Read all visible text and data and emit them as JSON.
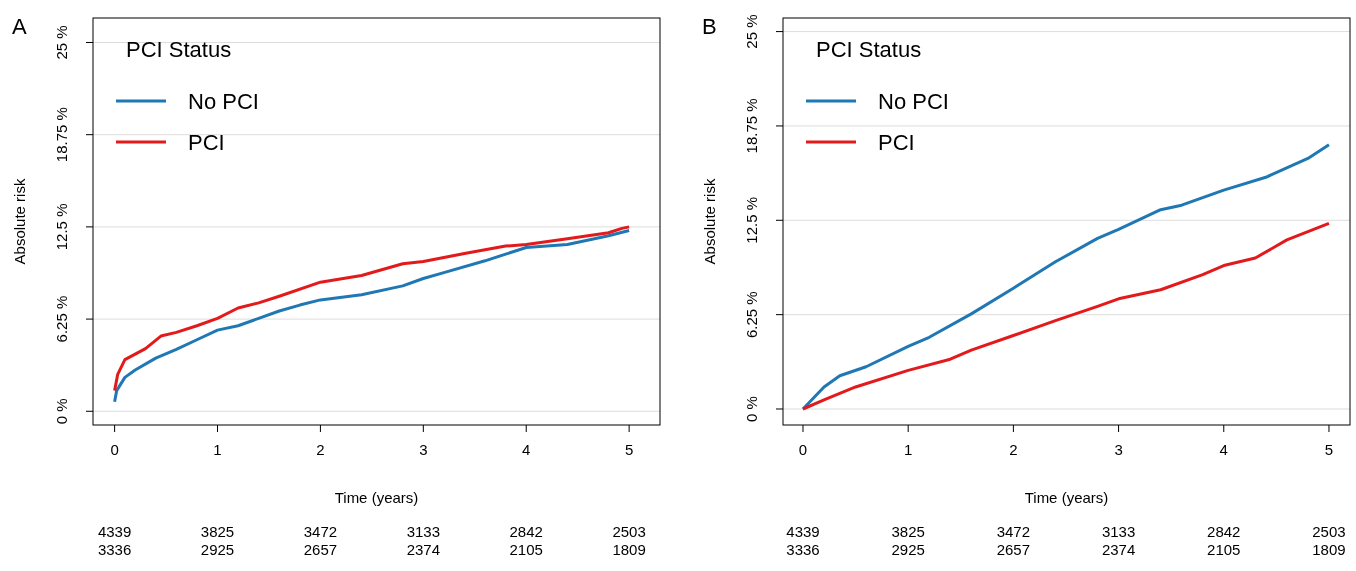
{
  "chart_data": [
    {
      "type": "line",
      "title": "A",
      "xlabel": "Time (years)",
      "ylabel": "Absolute risk",
      "legend_title": "PCI Status",
      "legend": "top left",
      "grid": "y",
      "xlim": [
        -0.21,
        5.3
      ],
      "xticks": [
        0,
        1,
        2,
        3,
        4,
        5
      ],
      "ylim": [
        -0.93,
        26.66
      ],
      "yticks": [
        {
          "value": 0,
          "label": "0 %"
        },
        {
          "value": 6.25,
          "label": "6.25 %"
        },
        {
          "value": 12.5,
          "label": "12.5 %"
        },
        {
          "value": 18.75,
          "label": "18.75 %"
        },
        {
          "value": 25,
          "label": "25 %"
        }
      ],
      "series": [
        {
          "name": "No PCI",
          "color": "#1f78b4",
          "x": [
            0,
            0.02,
            0.1,
            0.2,
            0.4,
            0.6,
            0.8,
            1,
            1.2,
            1.4,
            1.6,
            1.8,
            2,
            2.4,
            2.8,
            3,
            3.2,
            3.6,
            4,
            4.4,
            4.8,
            5
          ],
          "values": [
            0.64,
            1.4,
            2.3,
            2.8,
            3.6,
            4.2,
            4.85,
            5.5,
            5.8,
            6.3,
            6.8,
            7.2,
            7.55,
            7.9,
            8.5,
            9,
            9.4,
            10.2,
            11.1,
            11.3,
            11.9,
            12.25
          ]
        },
        {
          "name": "PCI",
          "color": "#e31a1c",
          "x": [
            0,
            0.03,
            0.1,
            0.3,
            0.45,
            0.6,
            0.8,
            1,
            1.2,
            1.4,
            1.6,
            2,
            2.4,
            2.8,
            3,
            3.4,
            3.8,
            4,
            4.4,
            4.8,
            4.93,
            5
          ],
          "values": [
            1.4,
            2.5,
            3.5,
            4.25,
            5.1,
            5.35,
            5.8,
            6.3,
            7,
            7.35,
            7.8,
            8.75,
            9.2,
            10,
            10.15,
            10.7,
            11.2,
            11.3,
            11.7,
            12.1,
            12.4,
            12.5
          ]
        }
      ],
      "annotations": [
        "4339 3825 3472 3133 2842 2503",
        "3336 2925 2657 2374 2105 1809"
      ]
    },
    {
      "type": "line",
      "title": "B",
      "xlabel": "Time (years)",
      "ylabel": "Absolute risk",
      "legend_title": "PCI Status",
      "legend": "top left",
      "grid": "y",
      "xlim": [
        -0.19,
        5.2
      ],
      "xticks": [
        0,
        1,
        2,
        3,
        4,
        5
      ],
      "ylim": [
        -1.06,
        25.9
      ],
      "yticks": [
        {
          "value": 0,
          "label": "0 %"
        },
        {
          "value": 6.25,
          "label": "6.25 %"
        },
        {
          "value": 12.5,
          "label": "12.5 %"
        },
        {
          "value": 18.75,
          "label": "18.75 %"
        },
        {
          "value": 25,
          "label": "25 %"
        }
      ],
      "series": [
        {
          "name": "No PCI",
          "color": "#1f78b4",
          "x": [
            0,
            0.1,
            0.2,
            0.35,
            0.6,
            1,
            1.2,
            1.6,
            2,
            2.4,
            2.8,
            3,
            3.4,
            3.6,
            4,
            4.4,
            4.8,
            5
          ],
          "values": [
            0,
            0.73,
            1.46,
            2.2,
            2.8,
            4.15,
            4.75,
            6.3,
            8,
            9.75,
            11.3,
            11.9,
            13.2,
            13.5,
            14.5,
            15.35,
            16.6,
            17.5
          ]
        },
        {
          "name": "PCI",
          "color": "#e31a1c",
          "x": [
            0,
            0.2,
            0.5,
            1,
            1.4,
            1.6,
            2,
            2.4,
            2.8,
            3,
            3.4,
            3.8,
            4,
            4.3,
            4.6,
            5
          ],
          "values": [
            0,
            0.6,
            1.46,
            2.56,
            3.3,
            3.9,
            4.87,
            5.85,
            6.8,
            7.3,
            7.9,
            8.9,
            9.5,
            10,
            11.2,
            12.3
          ]
        }
      ],
      "annotations": [
        "4339 3825 3472 3133 2842 2503",
        "3336 2925 2657 2374 2105 1809"
      ]
    }
  ]
}
